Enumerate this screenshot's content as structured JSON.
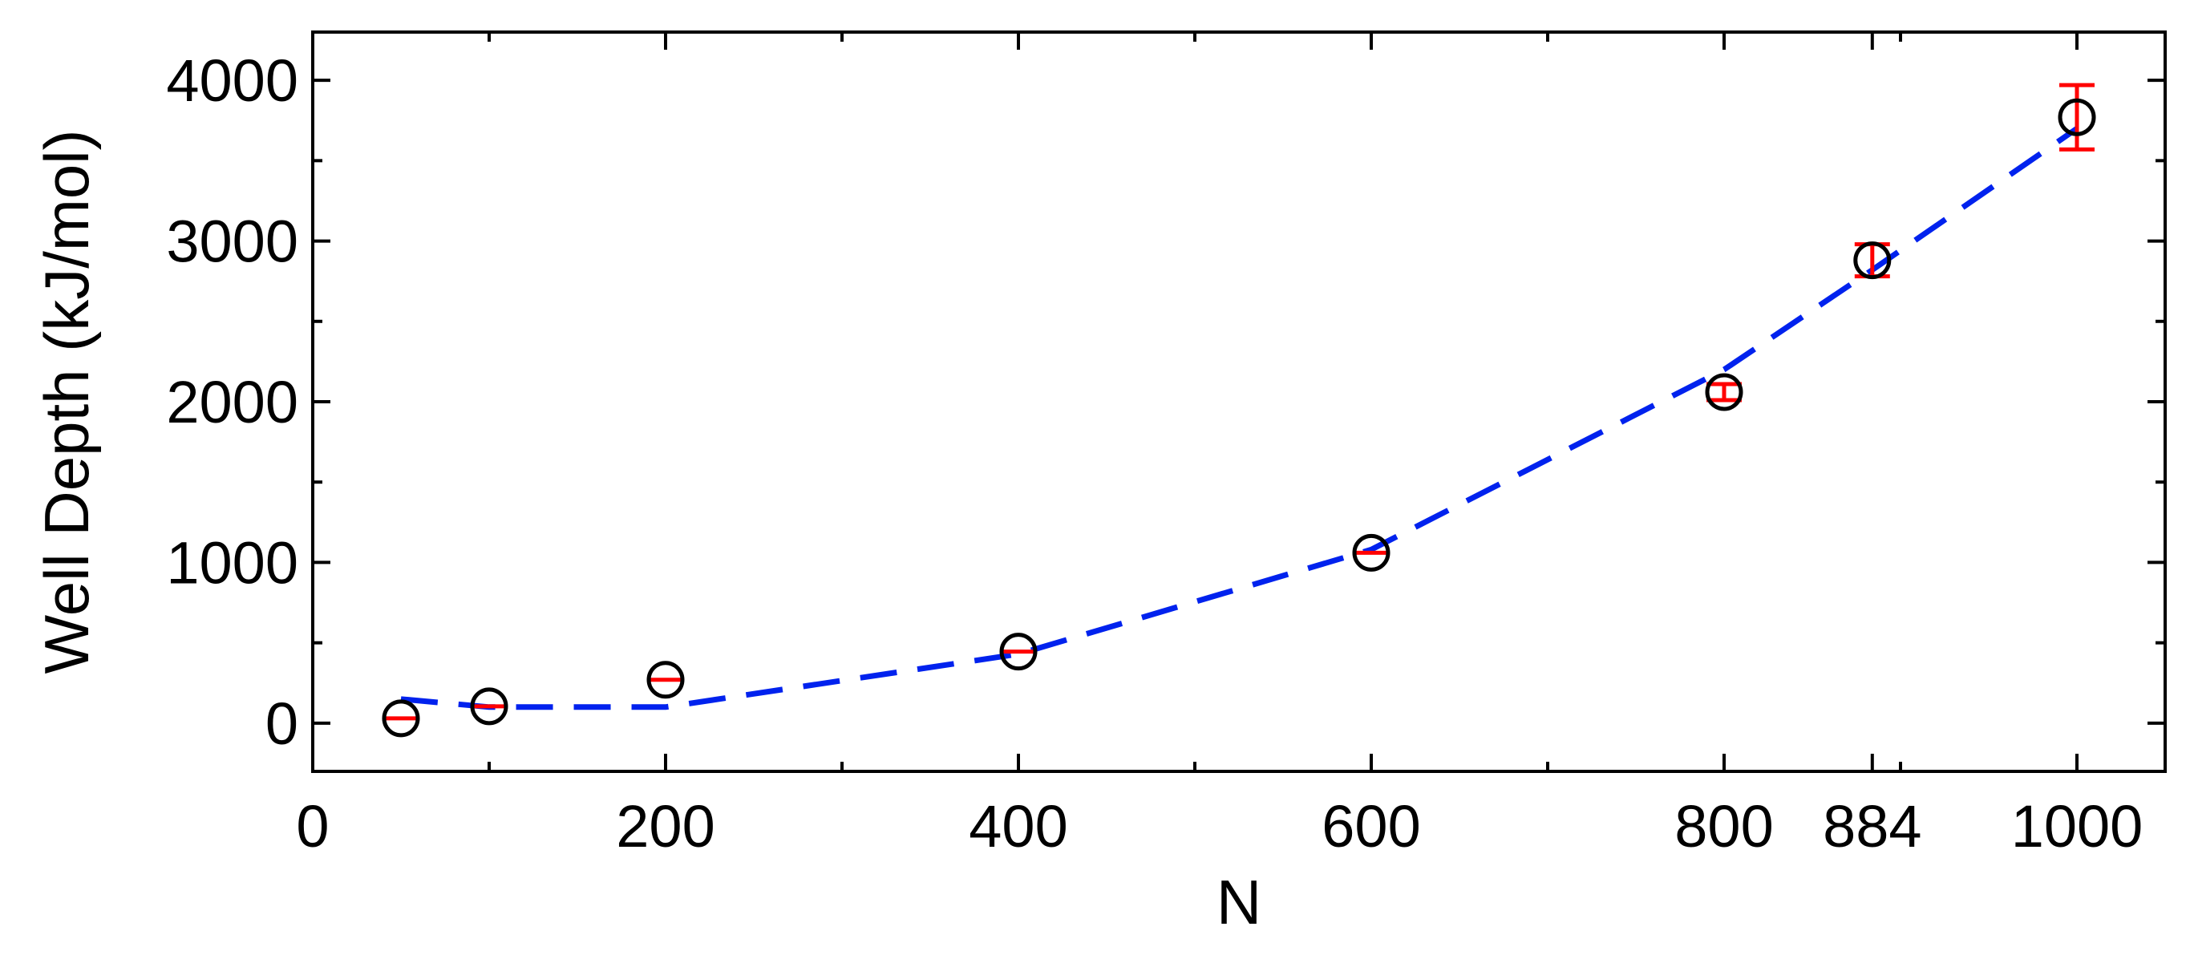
{
  "chart_data": {
    "type": "scatter",
    "xlabel": "N",
    "ylabel": "Well Depth (kJ/mol)",
    "xlim": [
      0,
      1050
    ],
    "ylim": [
      -300,
      4300
    ],
    "xticks": [
      0,
      200,
      400,
      600,
      800,
      884,
      1000
    ],
    "xtick_labels": [
      "0",
      "200",
      "400",
      "600",
      "800",
      "884",
      "1000"
    ],
    "xminor": [
      100,
      300,
      500,
      700,
      900
    ],
    "yticks": [
      0,
      1000,
      2000,
      3000,
      4000
    ],
    "ytick_labels": [
      "0",
      "1000",
      "2000",
      "3000",
      "4000"
    ],
    "yminor": [
      500,
      1500,
      2500,
      3500
    ],
    "grid": false,
    "series": [
      {
        "kind": "points",
        "marker": "open-circle",
        "color": "#000000",
        "errorbar_color": "#ff0000",
        "points": [
          {
            "x": 50,
            "y": 30,
            "err": 0
          },
          {
            "x": 100,
            "y": 105,
            "err": 0
          },
          {
            "x": 200,
            "y": 270,
            "err": 0
          },
          {
            "x": 400,
            "y": 445,
            "err": 0
          },
          {
            "x": 600,
            "y": 1060,
            "err": 0
          },
          {
            "x": 800,
            "y": 2060,
            "err": 50
          },
          {
            "x": 884,
            "y": 2880,
            "err": 100
          },
          {
            "x": 1000,
            "y": 3770,
            "err": 200
          }
        ]
      },
      {
        "kind": "fit-line",
        "style": "dashed",
        "color": "#0022ee",
        "x": [
          50,
          100,
          200,
          400,
          600,
          800,
          884,
          1000
        ],
        "y": [
          150,
          100,
          100,
          430,
          1080,
          2200,
          2820,
          3700
        ]
      }
    ]
  }
}
